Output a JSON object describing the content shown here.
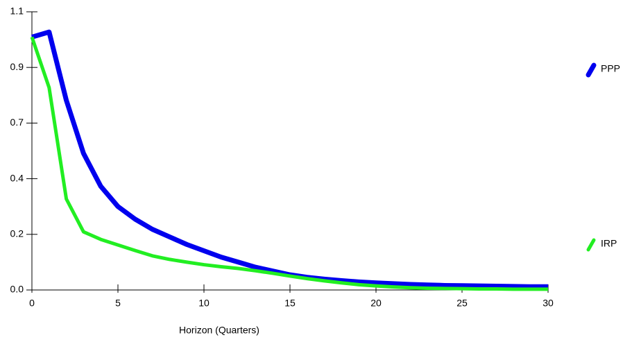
{
  "chart_data": {
    "type": "line",
    "x_label": "Horizon (Quarters)",
    "x": [
      0,
      1,
      2,
      3,
      4,
      5,
      6,
      7,
      8,
      9,
      10,
      11,
      12,
      13,
      14,
      15,
      16,
      17,
      18,
      19,
      20,
      21,
      22,
      23,
      24,
      25,
      26,
      27,
      28,
      29,
      30
    ],
    "series": [
      {
        "name": "PPP",
        "color": "#0000ee",
        "values": [
          1.0,
          1.02,
          0.75,
          0.54,
          0.41,
          0.33,
          0.28,
          0.24,
          0.21,
          0.18,
          0.155,
          0.13,
          0.11,
          0.09,
          0.075,
          0.06,
          0.05,
          0.043,
          0.037,
          0.032,
          0.028,
          0.025,
          0.022,
          0.02,
          0.018,
          0.017,
          0.016,
          0.015,
          0.014,
          0.013,
          0.013
        ]
      },
      {
        "name": "IRP",
        "color": "#22ee22",
        "values": [
          1.0,
          0.8,
          0.36,
          0.23,
          0.2,
          0.178,
          0.156,
          0.135,
          0.121,
          0.11,
          0.1,
          0.092,
          0.085,
          0.076,
          0.066,
          0.055,
          0.045,
          0.036,
          0.028,
          0.021,
          0.016,
          0.012,
          0.009,
          0.007,
          0.006,
          0.005,
          0.004,
          0.004,
          0.003,
          0.003,
          0.003
        ]
      }
    ],
    "xlim": [
      0,
      30
    ],
    "xticks": [
      0,
      5,
      10,
      15,
      20,
      25,
      30
    ],
    "ylim": [
      0,
      1.1
    ],
    "yticks": [
      {
        "value": 0,
        "label": "0.0"
      },
      {
        "value": 0.22,
        "label": "0.2"
      },
      {
        "value": 0.44,
        "label": "0.4"
      },
      {
        "value": 0.66,
        "label": "0.7"
      },
      {
        "value": 0.88,
        "label": "0.9"
      },
      1.1
    ]
  }
}
